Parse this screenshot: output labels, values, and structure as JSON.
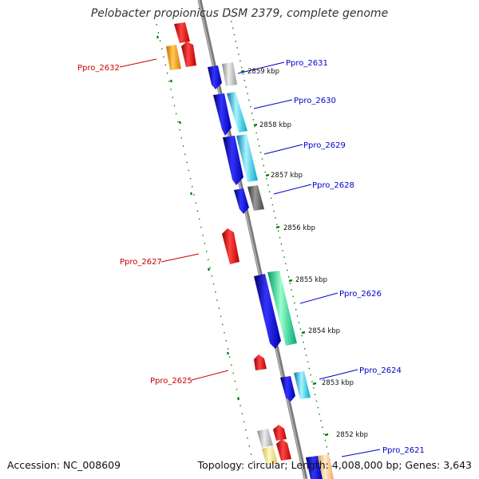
{
  "title": "Pelobacter propionicus DSM 2379, complete genome",
  "footer": {
    "accession": "Accession: NC_008609",
    "topology": "Topology: circular; Length: 4,008,000 bp; Genes: 3,643"
  },
  "colors": {
    "forward_label": "#0000cc",
    "reverse_label": "#cc0000",
    "backbone": "#808080",
    "tick": "#007700"
  },
  "kbp_labels": [
    "2859 kbp",
    "2858 kbp",
    "2857 kbp",
    "2856 kbp",
    "2855 kbp",
    "2854 kbp",
    "2853 kbp",
    "2852 kbp"
  ],
  "gene_labels": {
    "forward": [
      "Ppro_2631",
      "Ppro_2630",
      "Ppro_2629",
      "Ppro_2628",
      "Ppro_2626",
      "Ppro_2624",
      "Ppro_2621"
    ],
    "reverse": [
      "Ppro_2632",
      "Ppro_2627",
      "Ppro_2625"
    ]
  }
}
